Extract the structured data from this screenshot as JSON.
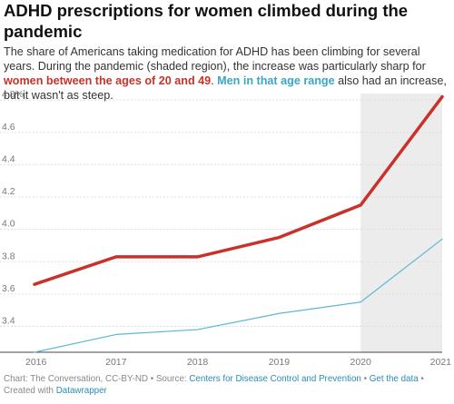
{
  "title": "ADHD prescriptions for women climbed during the pandemic",
  "description": {
    "text1": "The share of Americans taking medication for ADHD has been climbing for several years. During the pandemic (shaded region), the increase was particularly sharp for ",
    "women_phrase": "women between the ages of 20 and 49",
    "text2": ". ",
    "men_phrase": "Men in that age range",
    "text3": " also had an increase, but it wasn't as steep."
  },
  "colors": {
    "women": "#c8322a",
    "men": "#5bb8d3",
    "shade": "#ececec",
    "grid": "#dddddd",
    "tick_text": "#777777"
  },
  "chart_data": {
    "type": "line",
    "x": [
      2016,
      2017,
      2018,
      2019,
      2020,
      2021
    ],
    "x_tick_labels": [
      "2016",
      "2017",
      "2018",
      "2019",
      "2020",
      "2021"
    ],
    "y_ticks": [
      3.4,
      3.6,
      3.8,
      4.0,
      4.2,
      4.4,
      4.6,
      4.8
    ],
    "y_tick_labels": [
      "3.4",
      "3.6",
      "3.8",
      "4.0",
      "4.2",
      "4.4",
      "4.6",
      "4.8%"
    ],
    "ylim": [
      3.24,
      4.84
    ],
    "xlim": [
      2016,
      2021
    ],
    "shaded_region": [
      2020,
      2021
    ],
    "series": [
      {
        "key": "women",
        "values": [
          3.66,
          3.83,
          3.83,
          3.95,
          4.15,
          4.82
        ]
      },
      {
        "key": "men",
        "values": [
          3.24,
          3.35,
          3.38,
          3.48,
          3.55,
          3.94
        ]
      }
    ],
    "grid": true
  },
  "footer": {
    "prefix": "Chart: The Conversation, CC-BY-ND • Source: ",
    "source_link": "Centers for Disease Control and Prevention",
    "sep": " • ",
    "data_link": "Get the data",
    "created": " • Created with ",
    "tool_link": "Datawrapper"
  }
}
